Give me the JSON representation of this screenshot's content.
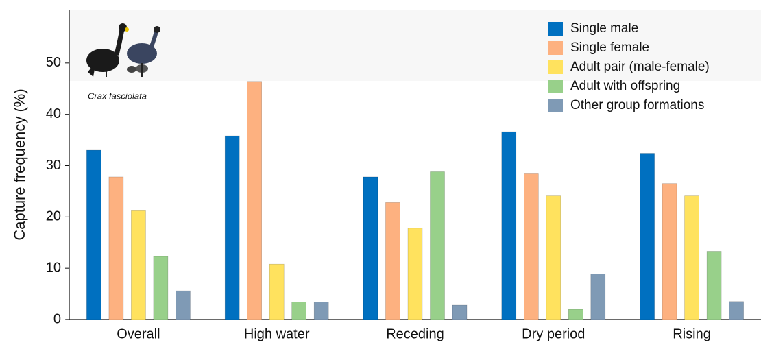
{
  "chart_data": {
    "type": "bar",
    "y_label": "Capture frequency (%)",
    "annotation": "Crax fasciolata",
    "categories": [
      "Overall",
      "High water",
      "Receding",
      "Dry period",
      "Rising"
    ],
    "series": [
      {
        "name": "Single male",
        "color": "#0070c0",
        "values": [
          33.0,
          35.8,
          27.8,
          36.6,
          32.4
        ]
      },
      {
        "name": "Single female",
        "color": "#fdb180",
        "values": [
          27.8,
          46.4,
          22.8,
          28.4,
          26.5
        ]
      },
      {
        "name": "Adult pair (male-female)",
        "color": "#ffe25e",
        "values": [
          21.2,
          10.8,
          17.8,
          24.1,
          24.1
        ]
      },
      {
        "name": "Adult with offspring",
        "color": "#98d08a",
        "values": [
          12.3,
          3.4,
          28.8,
          2.0,
          13.3
        ]
      },
      {
        "name": "Other group formations",
        "color": "#7f9ab5",
        "values": [
          5.6,
          3.4,
          2.8,
          8.9,
          3.5
        ]
      }
    ],
    "ylim": [
      0,
      60
    ],
    "yticks": [
      0,
      10,
      20,
      30,
      40,
      50
    ]
  }
}
